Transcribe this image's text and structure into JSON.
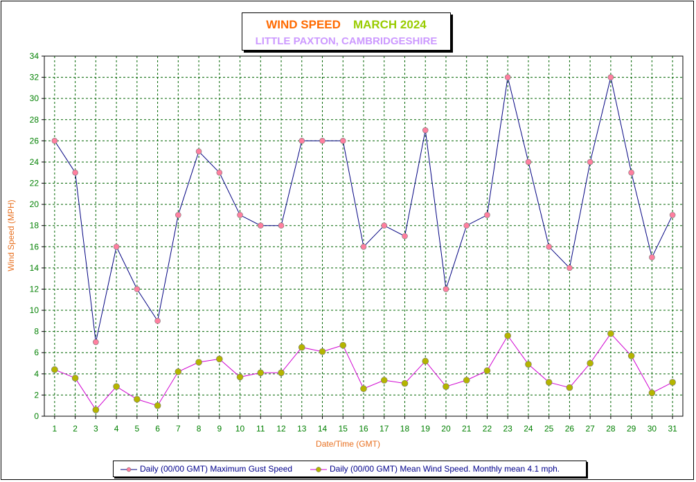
{
  "title": {
    "part1": "WIND SPEED",
    "part2": "MARCH 2024",
    "subtitle": "LITTLE PAXTON, CAMBRIDGESHIRE"
  },
  "colors": {
    "title1": "#ff6a00",
    "title2": "#99cc00",
    "subtitle": "#cc99ff",
    "axis_label": "#e87020",
    "tick_label": "#008000",
    "grid": "#006400",
    "gust_line": "#000080",
    "gust_marker": "#ff7f9f",
    "mean_line": "#d000d0",
    "mean_marker": "#b5b500"
  },
  "chart_data": {
    "type": "line",
    "xlabel": "Date/Time (GMT)",
    "ylabel": "Wind Speed (MPH)",
    "ylim": [
      0,
      34
    ],
    "yticks": [
      0,
      2,
      4,
      6,
      8,
      10,
      12,
      14,
      16,
      18,
      20,
      22,
      24,
      26,
      28,
      30,
      32,
      34
    ],
    "grid": true,
    "legend_position": "bottom",
    "categories": [
      "1",
      "2",
      "3",
      "4",
      "5",
      "6",
      "7",
      "8",
      "9",
      "10",
      "11",
      "12",
      "13",
      "14",
      "15",
      "16",
      "17",
      "18",
      "19",
      "20",
      "21",
      "22",
      "23",
      "24",
      "25",
      "26",
      "27",
      "28",
      "29",
      "30",
      "31"
    ],
    "series": [
      {
        "name": "Daily (00/00 GMT) Maximum Gust Speed",
        "values": [
          26,
          23,
          7,
          16,
          12,
          9,
          19,
          25,
          23,
          19,
          18,
          18,
          26,
          26,
          26,
          16,
          18,
          17,
          27,
          12,
          18,
          19,
          32,
          24,
          16,
          14,
          24,
          32,
          23,
          15,
          19
        ]
      },
      {
        "name": "Daily (00/00 GMT) Mean Wind Speed. Monthly mean 4.1 mph.",
        "values": [
          4.4,
          3.6,
          0.6,
          2.8,
          1.6,
          1.0,
          4.2,
          5.1,
          5.4,
          3.7,
          4.1,
          4.1,
          6.5,
          6.1,
          6.7,
          2.6,
          3.4,
          3.1,
          5.2,
          2.8,
          3.4,
          4.3,
          7.6,
          4.9,
          3.2,
          2.7,
          5.0,
          7.8,
          5.7,
          2.2,
          3.2
        ]
      }
    ]
  }
}
